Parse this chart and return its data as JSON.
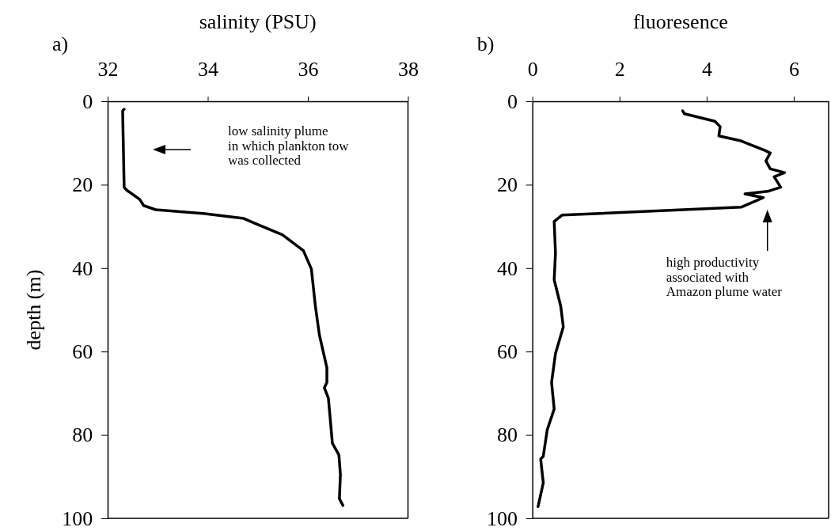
{
  "chart_data": [
    {
      "type": "line",
      "title": "salinity (PSU)",
      "ylabel": "depth (m)",
      "xlim": [
        32,
        38
      ],
      "xticks": [
        32,
        34,
        36,
        38
      ],
      "ylim": [
        100,
        0
      ],
      "yticks": [
        0,
        20,
        40,
        60,
        80,
        100
      ],
      "grid": false,
      "marker": "none",
      "line_style": "solid",
      "series": [
        {
          "color": "#000000",
          "x": [
            32.33,
            32.3,
            32.33,
            32.38,
            32.64,
            32.72,
            32.96,
            33.91,
            34.72,
            34.91,
            35.49,
            35.91,
            36.07,
            36.15,
            36.23,
            36.38,
            36.38,
            36.33,
            36.41,
            36.49,
            36.62,
            36.65,
            36.63,
            36.7
          ],
          "values": [
            1.9,
            2.3,
            20.6,
            21.3,
            23.5,
            25.0,
            26.0,
            26.9,
            28.1,
            29.1,
            32.0,
            35.8,
            40.2,
            49.1,
            56.0,
            63.9,
            67.4,
            68.7,
            71.2,
            82.0,
            84.8,
            89.5,
            95.3,
            96.9
          ]
        }
      ],
      "annotations": [
        "a)",
        "low salinity plume\nin which plankton tow\nwas collected"
      ]
    },
    {
      "type": "line",
      "title": "fluoresence",
      "xlim": [
        0,
        6.8
      ],
      "xticks": [
        0,
        2,
        4,
        6
      ],
      "ylim": [
        100,
        0
      ],
      "yticks": [
        0,
        20,
        40,
        60,
        80,
        100
      ],
      "grid": false,
      "marker": "none",
      "line_style": "solid",
      "series": [
        {
          "color": "#000000",
          "x": [
            3.45,
            3.49,
            4.19,
            4.31,
            4.28,
            4.79,
            5.34,
            5.46,
            5.36,
            5.46,
            5.79,
            5.55,
            5.7,
            5.4,
            4.88,
            5.3,
            4.79,
            0.68,
            0.5,
            0.53,
            0.5,
            0.65,
            0.71,
            0.53,
            0.44,
            0.5,
            0.34,
            0.25,
            0.19,
            0.25,
            0.13
          ],
          "values": [
            2.3,
            3.0,
            4.8,
            6.1,
            8.3,
            9.5,
            11.8,
            12.4,
            14.3,
            16.2,
            17.1,
            18.1,
            20.6,
            21.6,
            22.2,
            23.1,
            25.4,
            27.3,
            28.8,
            36.4,
            42.8,
            49.1,
            54.1,
            60.5,
            67.4,
            73.8,
            78.8,
            85.1,
            85.8,
            91.5,
            97.2
          ]
        }
      ],
      "annotations": [
        "b)",
        "high productivity\nassociated with\nAmazon plume water"
      ]
    }
  ]
}
